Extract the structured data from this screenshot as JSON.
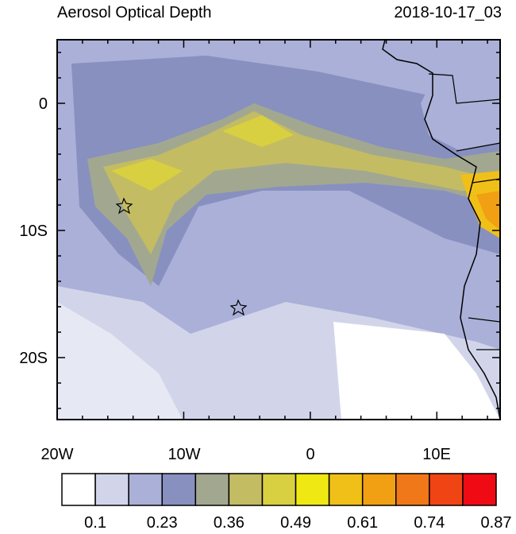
{
  "header": {
    "title": "Aerosol Optical Depth",
    "date": "2018-10-17_03"
  },
  "map": {
    "lat_labels": [
      "0",
      "10S",
      "20S"
    ],
    "lon_labels": [
      "20W",
      "10W",
      "0",
      "10E"
    ]
  },
  "colorbar": {
    "colors": [
      "#ffffff",
      "#d2d5ea",
      "#aab0d8",
      "#8890c0",
      "#a2a890",
      "#c4bc62",
      "#d8d040",
      "#f0e812",
      "#f0c018",
      "#f0a012",
      "#f07818",
      "#f04414",
      "#f00a14"
    ],
    "labels": [
      "0.1",
      "0.23",
      "0.36",
      "0.49",
      "0.61",
      "0.74",
      "0.87"
    ]
  }
}
